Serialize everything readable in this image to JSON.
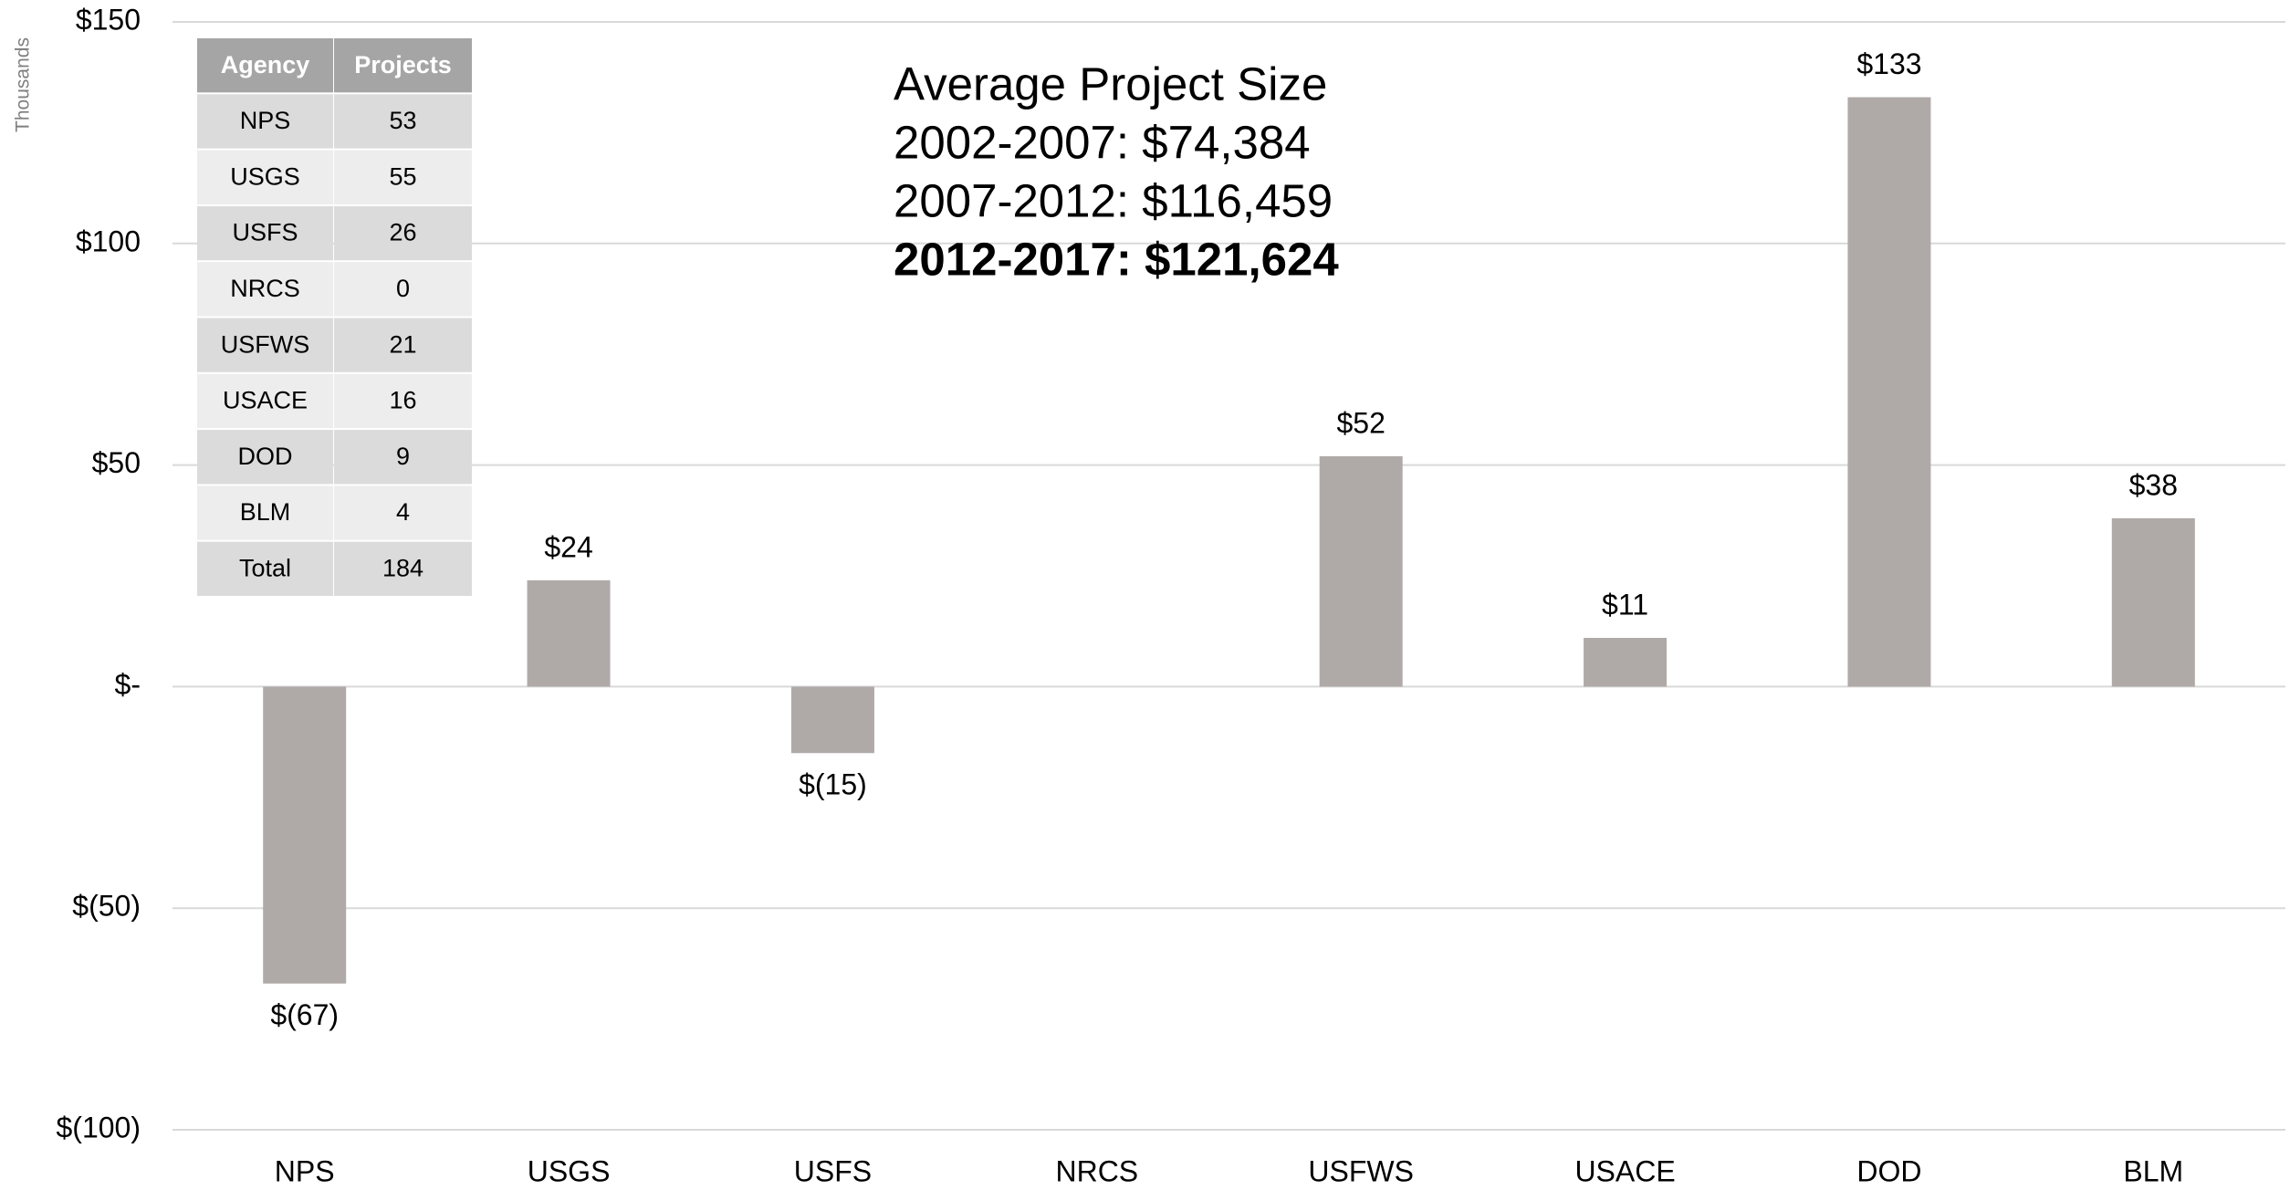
{
  "chart_data": {
    "type": "bar",
    "y_axis_label": "Thousands",
    "categories": [
      "NPS",
      "USGS",
      "USFS",
      "NRCS",
      "USFWS",
      "USACE",
      "DOD",
      "BLM"
    ],
    "values": [
      -67,
      24,
      -15,
      0,
      52,
      11,
      133,
      38
    ],
    "value_labels": [
      "$(67)",
      "$24",
      "$(15)",
      null,
      "$52",
      "$11",
      "$133",
      "$38"
    ],
    "color": "#afaaa8",
    "ylim": [
      -100,
      150
    ],
    "yticks": [
      {
        "value": -100,
        "label": "$(100)"
      },
      {
        "value": -50,
        "label": "$(50)"
      },
      {
        "value": 0,
        "label": "$-"
      },
      {
        "value": 50,
        "label": "$50"
      },
      {
        "value": 100,
        "label": "$100"
      },
      {
        "value": 150,
        "label": "$150"
      }
    ],
    "grid": true,
    "annotations": [
      {
        "text": "Average Project Size",
        "bold": false
      },
      {
        "text": "2002-2007:  $74,384",
        "bold": false
      },
      {
        "text": "2007-2012:  $116,459",
        "bold": false
      },
      {
        "text": "2012-2017:  $121,624",
        "bold": true
      }
    ]
  },
  "table": {
    "columns": [
      "Agency",
      "Projects"
    ],
    "rows": [
      [
        "NPS",
        "53"
      ],
      [
        "USGS",
        "55"
      ],
      [
        "USFS",
        "26"
      ],
      [
        "NRCS",
        "0"
      ],
      [
        "USFWS",
        "21"
      ],
      [
        "USACE",
        "16"
      ],
      [
        "DOD",
        "9"
      ],
      [
        "BLM",
        "4"
      ],
      [
        "Total",
        "184"
      ]
    ]
  }
}
